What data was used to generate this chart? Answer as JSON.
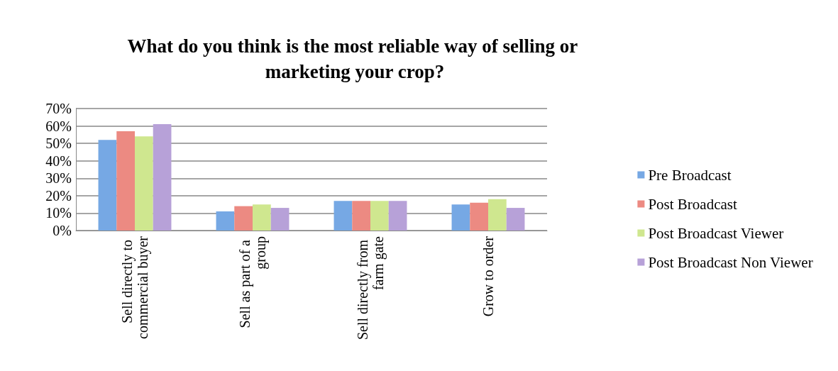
{
  "chart_data": {
    "type": "bar",
    "title": "What do you think is the most reliable way of selling or marketing your crop?",
    "categories": [
      "Sell directly to commercial buyer",
      "Sell as part of a group",
      "Sell directly from farm gate",
      "Grow to order"
    ],
    "series": [
      {
        "name": "Pre Broadcast",
        "color": "#76a8e4",
        "values": [
          52,
          11,
          17,
          15
        ]
      },
      {
        "name": "Post Broadcast",
        "color": "#ec8a82",
        "values": [
          57,
          14,
          17,
          16
        ]
      },
      {
        "name": "Post Broadcast Viewer",
        "color": "#cfe78f",
        "values": [
          54,
          15,
          17,
          18
        ]
      },
      {
        "name": "Post Broadcast Non Viewer",
        "color": "#b7a1d8",
        "values": [
          61,
          13,
          17,
          13
        ]
      }
    ],
    "ylim": [
      0,
      70
    ],
    "yticks": [
      {
        "value": 0,
        "label": "0%"
      },
      {
        "value": 10,
        "label": "10%"
      },
      {
        "value": 20,
        "label": "20%"
      },
      {
        "value": 30,
        "label": "30%"
      },
      {
        "value": 40,
        "label": "40%"
      },
      {
        "value": 50,
        "label": "50%"
      },
      {
        "value": 60,
        "label": "60%"
      },
      {
        "value": 70,
        "label": "70%"
      }
    ],
    "grid": "y",
    "legend": "right"
  }
}
